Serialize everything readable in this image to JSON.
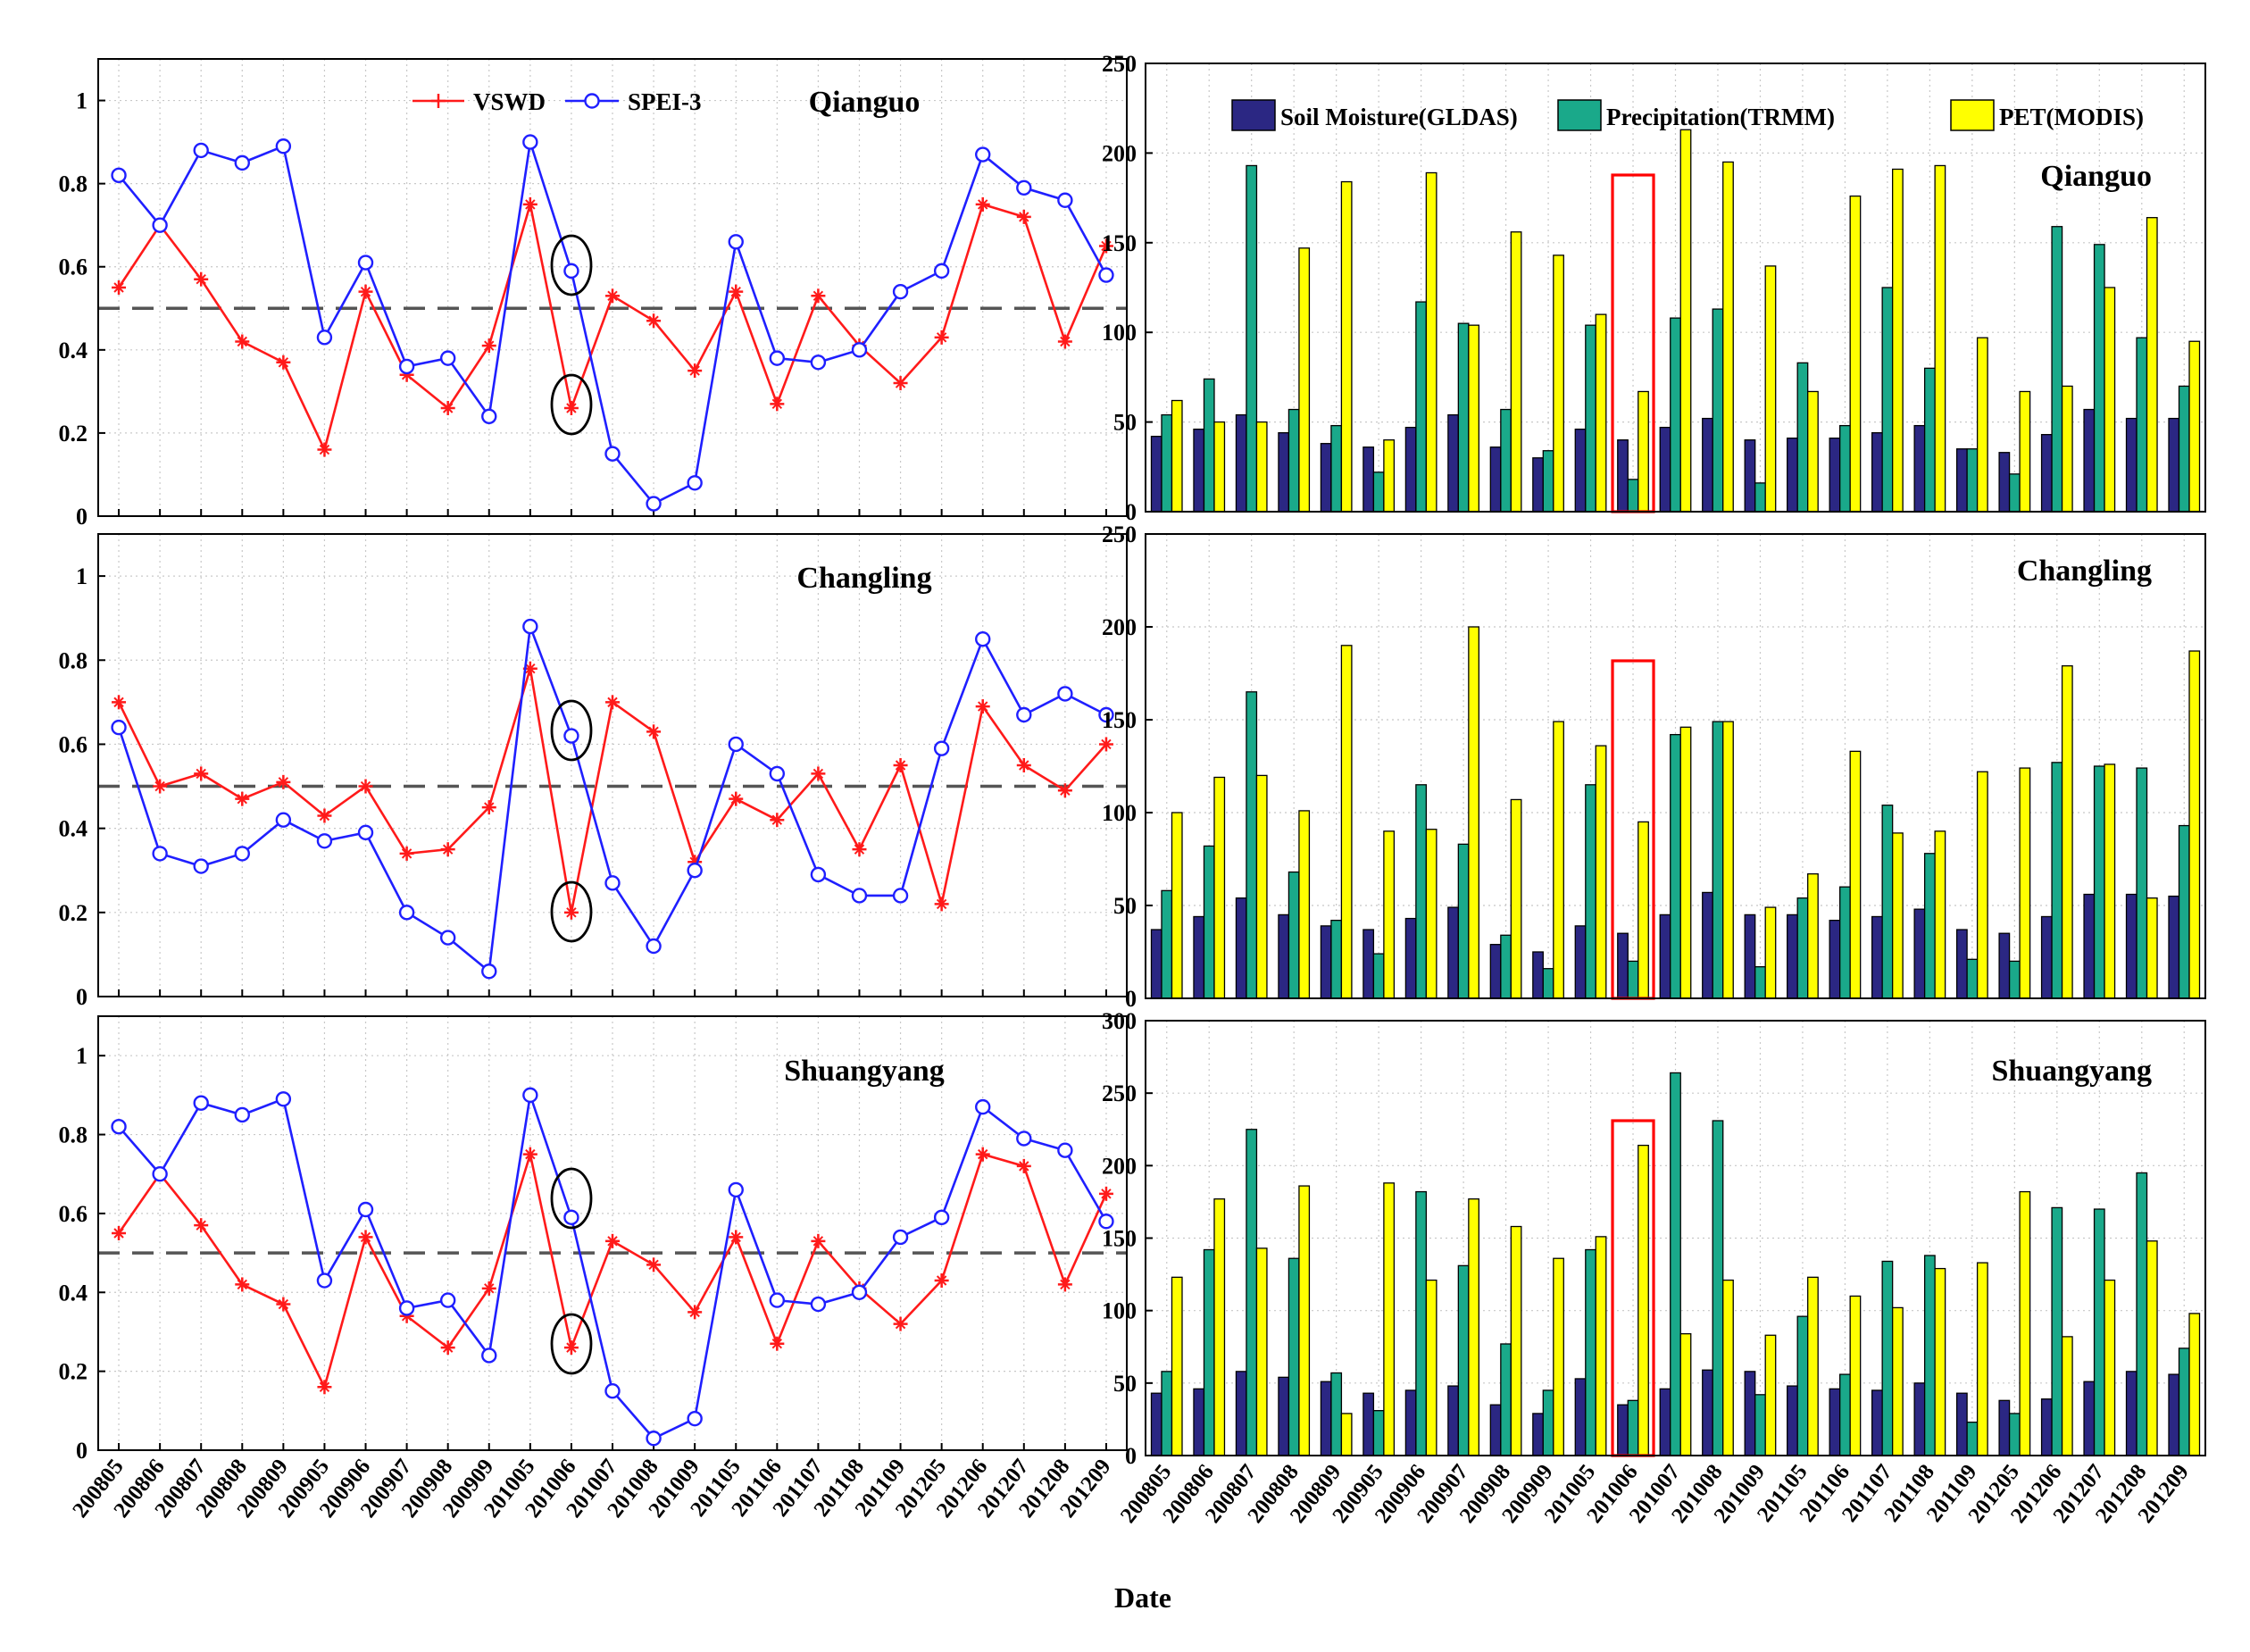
{
  "xlabel": "Date",
  "dates": [
    "200805",
    "200806",
    "200807",
    "200808",
    "200809",
    "200905",
    "200906",
    "200907",
    "200908",
    "200909",
    "201005",
    "201006",
    "201007",
    "201008",
    "201009",
    "201105",
    "201106",
    "201107",
    "201108",
    "201109",
    "201205",
    "201206",
    "201207",
    "201208",
    "201209"
  ],
  "colors": {
    "vswd": "#ff1a1a",
    "spei": "#1f1fff",
    "soil": "#2b2783",
    "precip": "#1aa98a",
    "pet": "#ffff00",
    "threshold": "#555555",
    "marker_box": "#ff0000",
    "circle": "#000000"
  },
  "chart_data": [
    {
      "type": "line",
      "site": "Qianguo",
      "ylim": [
        0,
        1.1
      ],
      "yticks": [
        "0",
        "0.2",
        "0.4",
        "0.6",
        "0.8",
        "1"
      ],
      "threshold": 0.5,
      "legend": [
        "VSWD",
        "SPEI-3"
      ],
      "series": [
        {
          "name": "VSWD",
          "values": [
            0.55,
            0.7,
            0.57,
            0.42,
            0.37,
            0.16,
            0.54,
            0.34,
            0.26,
            0.41,
            0.75,
            0.26,
            0.53,
            0.47,
            0.35,
            0.54,
            0.27,
            0.53,
            0.41,
            0.32,
            0.43,
            0.75,
            0.72,
            0.42,
            0.65
          ]
        },
        {
          "name": "SPEI-3",
          "values": [
            0.82,
            0.7,
            0.88,
            0.85,
            0.89,
            0.43,
            0.61,
            0.36,
            0.38,
            0.24,
            0.9,
            0.59,
            0.15,
            0.03,
            0.08,
            0.66,
            0.38,
            0.37,
            0.4,
            0.54,
            0.59,
            0.87,
            0.79,
            0.76,
            0.58
          ]
        }
      ]
    },
    {
      "type": "line",
      "site": "Changling",
      "ylim": [
        0,
        1.1
      ],
      "yticks": [
        "0",
        "0.2",
        "0.4",
        "0.6",
        "0.8",
        "1"
      ],
      "threshold": 0.5,
      "series": [
        {
          "name": "VSWD",
          "values": [
            0.7,
            0.5,
            0.53,
            0.47,
            0.51,
            0.43,
            0.5,
            0.34,
            0.35,
            0.45,
            0.78,
            0.2,
            0.7,
            0.63,
            0.32,
            0.47,
            0.42,
            0.53,
            0.35,
            0.55,
            0.22,
            0.69,
            0.55,
            0.49,
            0.6
          ]
        },
        {
          "name": "SPEI-3",
          "values": [
            0.64,
            0.34,
            0.31,
            0.34,
            0.42,
            0.37,
            0.39,
            0.2,
            0.14,
            0.06,
            0.88,
            0.62,
            0.27,
            0.12,
            0.3,
            0.6,
            0.53,
            0.29,
            0.24,
            0.24,
            0.59,
            0.85,
            0.67,
            0.72,
            0.67
          ]
        }
      ]
    },
    {
      "type": "line",
      "site": "Shuangyang",
      "ylim": [
        0,
        1.1
      ],
      "yticks": [
        "0",
        "0.2",
        "0.4",
        "0.6",
        "0.8",
        "1"
      ],
      "threshold": 0.5,
      "series": [
        {
          "name": "VSWD",
          "values": [
            0.55,
            0.7,
            0.57,
            0.42,
            0.37,
            0.16,
            0.54,
            0.34,
            0.26,
            0.41,
            0.75,
            0.26,
            0.53,
            0.47,
            0.35,
            0.54,
            0.27,
            0.53,
            0.41,
            0.32,
            0.43,
            0.75,
            0.72,
            0.42,
            0.65
          ]
        },
        {
          "name": "SPEI-3",
          "values": [
            0.82,
            0.7,
            0.88,
            0.85,
            0.89,
            0.43,
            0.61,
            0.36,
            0.38,
            0.24,
            0.9,
            0.59,
            0.15,
            0.03,
            0.08,
            0.66,
            0.38,
            0.37,
            0.4,
            0.54,
            0.59,
            0.87,
            0.79,
            0.76,
            0.58
          ]
        }
      ]
    },
    {
      "type": "bar",
      "site": "Qianguo",
      "ylim": [
        0,
        250
      ],
      "yticks": [
        "0",
        "50",
        "100",
        "150",
        "200",
        "250"
      ],
      "legend": [
        "Soil Moisture(GLDAS)",
        "Precipitation(TRMM)",
        "PET(MODIS)"
      ],
      "series": [
        {
          "name": "Soil Moisture(GLDAS)",
          "values": [
            42,
            46,
            54,
            44,
            38,
            36,
            47,
            54,
            36,
            30,
            46,
            40,
            47,
            52,
            40,
            41,
            41,
            44,
            48,
            35,
            33,
            43,
            57,
            52,
            52
          ]
        },
        {
          "name": "Precipitation(TRMM)",
          "values": [
            54,
            74,
            193,
            57,
            48,
            22,
            117,
            105,
            57,
            34,
            104,
            18,
            108,
            113,
            16,
            83,
            48,
            125,
            80,
            35,
            21,
            159,
            149,
            97,
            70
          ]
        },
        {
          "name": "PET(MODIS)",
          "values": [
            62,
            50,
            50,
            147,
            184,
            40,
            189,
            104,
            156,
            143,
            110,
            67,
            213,
            195,
            137,
            67,
            176,
            191,
            193,
            97,
            67,
            70,
            125,
            164,
            95
          ]
        }
      ]
    },
    {
      "type": "bar",
      "site": "Changling",
      "ylim": [
        0,
        250
      ],
      "yticks": [
        "0",
        "50",
        "100",
        "150",
        "200",
        "250"
      ],
      "series": [
        {
          "name": "Soil Moisture(GLDAS)",
          "values": [
            37,
            44,
            54,
            45,
            39,
            37,
            43,
            49,
            29,
            25,
            39,
            35,
            45,
            57,
            45,
            45,
            42,
            44,
            48,
            37,
            35,
            44,
            56,
            56,
            55
          ]
        },
        {
          "name": "Precipitation(TRMM)",
          "values": [
            58,
            82,
            165,
            68,
            42,
            24,
            115,
            83,
            34,
            16,
            115,
            20,
            142,
            149,
            17,
            54,
            60,
            104,
            78,
            21,
            20,
            127,
            125,
            124,
            93
          ]
        },
        {
          "name": "PET(MODIS)",
          "values": [
            100,
            119,
            120,
            101,
            190,
            90,
            91,
            200,
            107,
            149,
            136,
            95,
            146,
            149,
            49,
            67,
            133,
            89,
            90,
            122,
            124,
            179,
            126,
            54,
            187
          ]
        }
      ]
    },
    {
      "type": "bar",
      "site": "Shuangyang",
      "ylim": [
        0,
        300
      ],
      "yticks": [
        "0",
        "50",
        "100",
        "150",
        "200",
        "250",
        "300"
      ],
      "series": [
        {
          "name": "Soil Moisture(GLDAS)",
          "values": [
            43,
            46,
            58,
            54,
            51,
            43,
            45,
            48,
            35,
            29,
            53,
            35,
            46,
            59,
            58,
            48,
            46,
            45,
            50,
            43,
            38,
            39,
            51,
            58,
            56
          ]
        },
        {
          "name": "Precipitation(TRMM)",
          "values": [
            58,
            142,
            225,
            136,
            57,
            31,
            182,
            131,
            77,
            45,
            142,
            38,
            264,
            231,
            42,
            96,
            56,
            134,
            138,
            23,
            29,
            171,
            170,
            195,
            74
          ]
        },
        {
          "name": "PET(MODIS)",
          "values": [
            123,
            177,
            143,
            186,
            29,
            188,
            121,
            177,
            158,
            136,
            151,
            214,
            84,
            121,
            83,
            123,
            110,
            102,
            129,
            133,
            182,
            82,
            121,
            148,
            98
          ]
        }
      ]
    }
  ]
}
